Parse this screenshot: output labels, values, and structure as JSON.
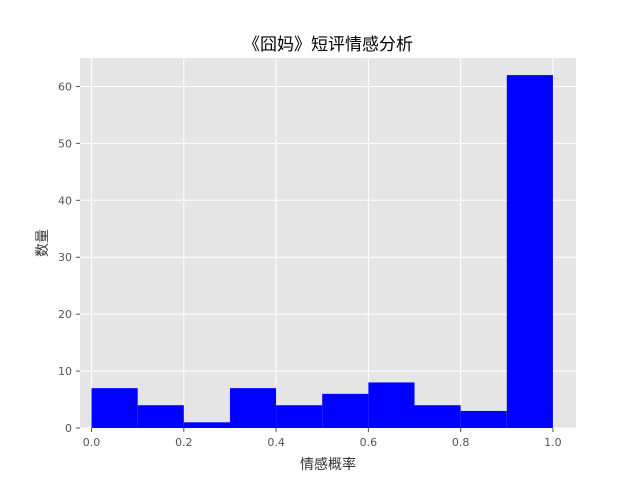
{
  "chart_data": {
    "type": "bar",
    "title": "《囧妈》短评情感分析",
    "xlabel": "情感概率",
    "ylabel": "数量",
    "bins": [
      {
        "start": 0.0,
        "end": 0.1,
        "count": 7
      },
      {
        "start": 0.1,
        "end": 0.2,
        "count": 4
      },
      {
        "start": 0.2,
        "end": 0.3,
        "count": 1
      },
      {
        "start": 0.3,
        "end": 0.4,
        "count": 7
      },
      {
        "start": 0.4,
        "end": 0.5,
        "count": 4
      },
      {
        "start": 0.5,
        "end": 0.6,
        "count": 6
      },
      {
        "start": 0.6,
        "end": 0.7,
        "count": 8
      },
      {
        "start": 0.7,
        "end": 0.8,
        "count": 4
      },
      {
        "start": 0.8,
        "end": 0.9,
        "count": 3
      },
      {
        "start": 0.9,
        "end": 1.0,
        "count": 62
      }
    ],
    "xlim": [
      -0.025,
      1.05
    ],
    "ylim": [
      0,
      65
    ],
    "xticks": [
      0.0,
      0.2,
      0.4,
      0.6,
      0.8,
      1.0
    ],
    "xtick_labels": [
      "0.0",
      "0.2",
      "0.4",
      "0.6",
      "0.8",
      "1.0"
    ],
    "yticks": [
      0,
      10,
      20,
      30,
      40,
      50,
      60
    ],
    "ytick_labels": [
      "0",
      "10",
      "20",
      "30",
      "40",
      "50",
      "60"
    ],
    "grid": true,
    "colors": {
      "bar": "#0000ff",
      "background": "#e5e5e5",
      "grid": "#ffffff"
    }
  }
}
